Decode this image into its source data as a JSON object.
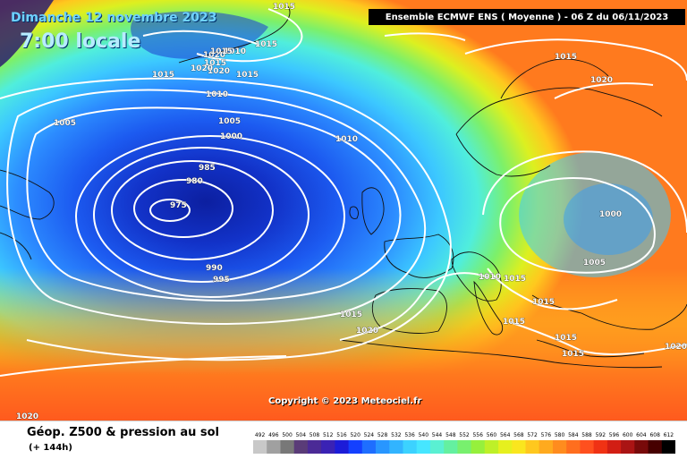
{
  "header": {
    "date": "Dimanche 12 novembre 2023",
    "time": "7:00 locale",
    "model": "Ensemble ECMWF ENS  ( Moyenne )  -  06 Z du 06/11/2023"
  },
  "map": {
    "copyright": "Copyright © 2023 Meteociel.fr",
    "isobar_labels": [
      "1015",
      "1010",
      "1015",
      "1020",
      "1015",
      "1020",
      "1015",
      "1015",
      "1020",
      "1015",
      "1010",
      "1005",
      "1000",
      "1005",
      "985",
      "980",
      "975",
      "990",
      "995",
      "1010",
      "1015",
      "1020",
      "1000",
      "1005",
      "1010",
      "1015",
      "1015",
      "1015",
      "1015",
      "1015",
      "1015",
      "1020",
      "1020",
      "1020"
    ]
  },
  "footer": {
    "title": "Géop. Z500 & pression au sol",
    "subtitle": "(+ 144h)"
  },
  "legend": {
    "values": [
      "492",
      "496",
      "500",
      "504",
      "508",
      "512",
      "516",
      "520",
      "524",
      "528",
      "532",
      "536",
      "540",
      "544",
      "548",
      "552",
      "556",
      "560",
      "564",
      "568",
      "572",
      "576",
      "580",
      "584",
      "588",
      "592",
      "596",
      "600",
      "604",
      "608",
      "612"
    ],
    "colors": [
      "#c8c8c8",
      "#a0a0a0",
      "#787878",
      "#5a3c78",
      "#4b2a96",
      "#3a22b4",
      "#1c1cd8",
      "#1440ff",
      "#1e6eff",
      "#2896ff",
      "#32b4ff",
      "#3cd2ff",
      "#46e6ff",
      "#5af0d2",
      "#64f0a0",
      "#78f06e",
      "#96f03c",
      "#bef028",
      "#e6f01e",
      "#fae61e",
      "#ffc81e",
      "#ffaa1e",
      "#ff8c1e",
      "#ff6e1e",
      "#ff501e",
      "#f03214",
      "#d21e14",
      "#aa1414",
      "#780a0a",
      "#460000",
      "#000000"
    ]
  }
}
